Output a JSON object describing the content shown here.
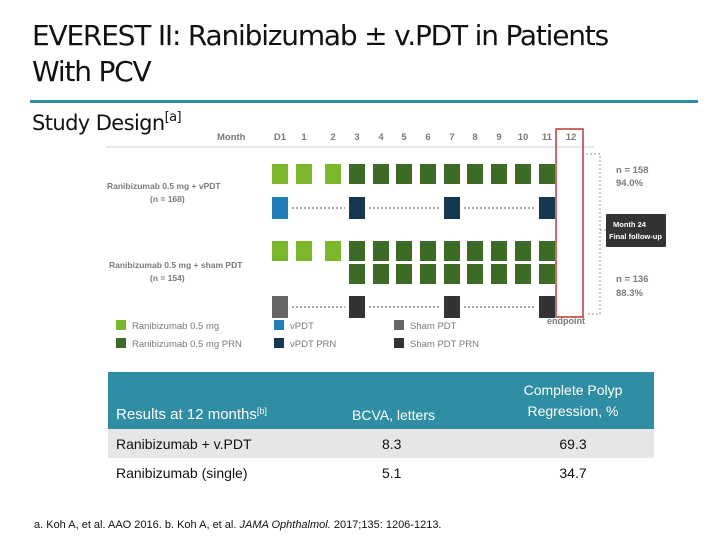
{
  "title_line1": "EVEREST II:  Ranibizumab ± v.PDT in Patients",
  "title_line2": "With PCV",
  "subtitle": "Study Design",
  "subtitle_ref": "[a]",
  "diagram": {
    "month_label": "Month",
    "months": [
      "D1",
      "1",
      "2",
      "3",
      "4",
      "5",
      "6",
      "7",
      "8",
      "9",
      "10",
      "11",
      "12"
    ],
    "arm1_label_line1": "Ranibizumab 0.5 mg + vPDT",
    "arm1_label_line2": "(n = 168)",
    "arm2_label_line1": "Ranibizumab 0.5 mg + sham PDT",
    "arm2_label_line2": "(n = 154)",
    "arm1_n": "n = 158",
    "arm1_pct": "94.0%",
    "arm2_n": "n = 136",
    "arm2_pct": "88.3%",
    "followup_line1": "Month 24",
    "followup_line2": "Final follow-up",
    "endpoint_label": "endpoint",
    "legend": [
      {
        "label": "Ranibizumab 0.5 mg",
        "color": "#7ab829"
      },
      {
        "label": "Ranibizumab 0.5 mg PRN",
        "color": "#3b6b24"
      },
      {
        "label": "vPDT",
        "color": "#1f7fb6"
      },
      {
        "label": "vPDT PRN",
        "color": "#14384f"
      },
      {
        "label": "Sham PDT",
        "color": "#666666"
      },
      {
        "label": "Sham PDT PRN",
        "color": "#333333"
      }
    ],
    "colors": {
      "rbz": "#7ab829",
      "rbz_prn": "#3b6b24",
      "vpdt": "#1f7fb6",
      "vpdt_prn": "#14384f",
      "sham": "#666666",
      "sham_prn": "#333333",
      "endpoint": "#c0392b",
      "text": "#7a7a7a"
    }
  },
  "results": {
    "header_col1": "Results at 12 months",
    "header_col1_ref": "[b]",
    "header_col2": "BCVA, letters",
    "header_col3_line1": "Complete Polyp",
    "header_col3_line2": "Regression, %",
    "rows": [
      {
        "label": "Ranibizumab + v.PDT",
        "bcva": "8.3",
        "regression": "69.3"
      },
      {
        "label": "Ranibizumab (single)",
        "bcva": "5.1",
        "regression": "34.7"
      }
    ]
  },
  "footnote": {
    "part1": "a. Koh A, et al. AAO 2016.  b. Koh A, et al. ",
    "journal": "JAMA Ophthalmol.",
    "part2": " 2017;135: 1206-1213."
  }
}
